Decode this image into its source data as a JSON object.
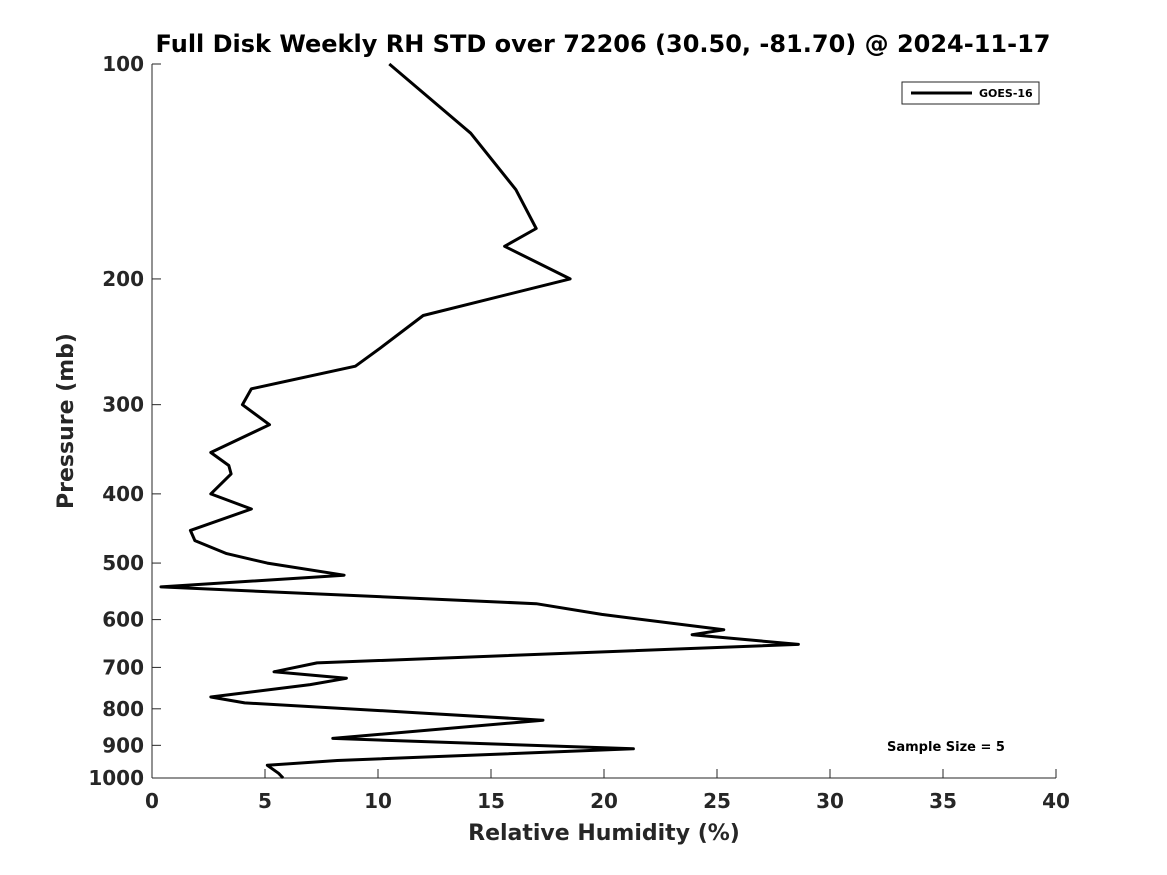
{
  "chart_data": {
    "type": "line",
    "title": "Full Disk Weekly RH STD over 72206 (30.50, -81.70) @ 2024-11-17",
    "xlabel": "Relative Humidity (%)",
    "ylabel": "Pressure (mb)",
    "xlim": [
      0,
      40
    ],
    "ylim": [
      100,
      1000
    ],
    "y_scale": "log",
    "y_reversed": true,
    "x_ticks": [
      0,
      5,
      10,
      15,
      20,
      25,
      30,
      35,
      40
    ],
    "x_tick_labels": [
      "0",
      "5",
      "10",
      "15",
      "20",
      "25",
      "30",
      "35",
      "40"
    ],
    "y_ticks": [
      100,
      200,
      300,
      400,
      500,
      600,
      700,
      800,
      900,
      1000
    ],
    "y_tick_labels": [
      "100",
      "200",
      "300",
      "400",
      "500",
      "600",
      "700",
      "800",
      "900",
      "1000"
    ],
    "grid": false,
    "legend_position": "top-right",
    "annotation": "Sample Size = 5",
    "series": [
      {
        "name": "GOES-16",
        "color": "#000000",
        "points": [
          [
            10.5,
            100
          ],
          [
            14.1,
            125
          ],
          [
            16.1,
            150
          ],
          [
            17.0,
            170
          ],
          [
            15.6,
            180
          ],
          [
            18.5,
            200
          ],
          [
            12.0,
            225
          ],
          [
            10.1,
            250
          ],
          [
            9.0,
            265
          ],
          [
            4.4,
            285
          ],
          [
            4.0,
            300
          ],
          [
            5.2,
            320
          ],
          [
            2.6,
            350
          ],
          [
            3.4,
            365
          ],
          [
            3.5,
            375
          ],
          [
            2.6,
            400
          ],
          [
            4.4,
            420
          ],
          [
            1.7,
            450
          ],
          [
            1.9,
            465
          ],
          [
            3.3,
            485
          ],
          [
            5.1,
            500
          ],
          [
            8.5,
            520
          ],
          [
            0.4,
            540
          ],
          [
            17.0,
            570
          ],
          [
            19.9,
            590
          ],
          [
            25.3,
            620
          ],
          [
            23.9,
            630
          ],
          [
            28.6,
            650
          ],
          [
            7.3,
            690
          ],
          [
            5.4,
            710
          ],
          [
            8.6,
            725
          ],
          [
            7.0,
            740
          ],
          [
            2.6,
            770
          ],
          [
            4.1,
            785
          ],
          [
            11.7,
            810
          ],
          [
            17.3,
            830
          ],
          [
            8.0,
            880
          ],
          [
            21.3,
            910
          ],
          [
            8.2,
            945
          ],
          [
            5.1,
            960
          ],
          [
            5.6,
            985
          ],
          [
            5.8,
            1000
          ]
        ]
      }
    ]
  }
}
